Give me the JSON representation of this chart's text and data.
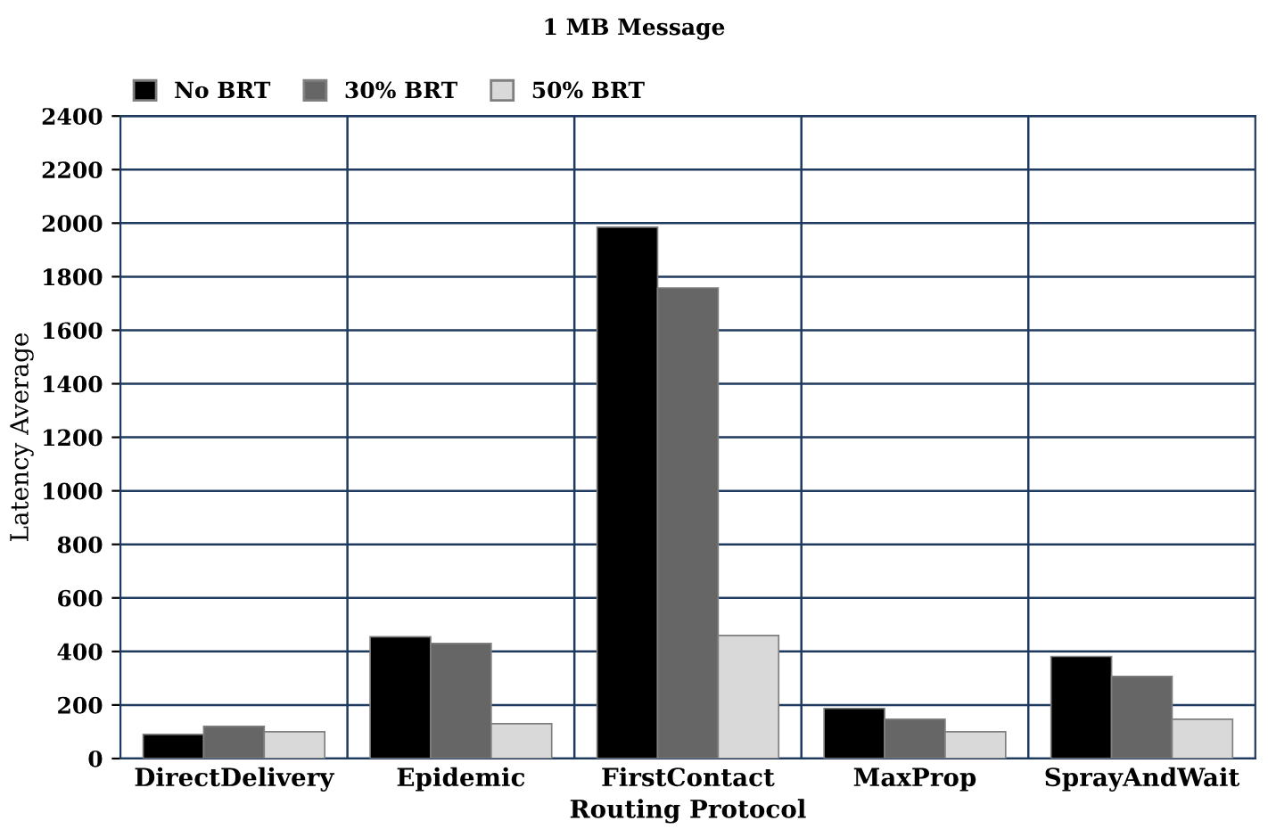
{
  "chart_data": {
    "type": "bar",
    "title": "1 MB Message",
    "xlabel": "Routing Protocol",
    "ylabel": "Latency Average",
    "categories": [
      "DirectDelivery",
      "Epidemic",
      "FirstContact",
      "MaxProp",
      "SprayAndWait"
    ],
    "series": [
      {
        "name": "No BRT",
        "color": "#000000",
        "values": [
          90,
          455,
          1985,
          187,
          381
        ]
      },
      {
        "name": "30% BRT",
        "color": "#666666",
        "values": [
          120,
          430,
          1758,
          147,
          307
        ]
      },
      {
        "name": "50% BRT",
        "color": "#d9d9d9",
        "values": [
          100,
          130,
          460,
          100,
          147
        ]
      }
    ],
    "ylim": [
      0,
      2400
    ],
    "yticks": [
      0,
      200,
      400,
      600,
      800,
      1000,
      1200,
      1400,
      1600,
      1800,
      2000,
      2200,
      2400
    ],
    "grid": true,
    "legend": "top left"
  }
}
